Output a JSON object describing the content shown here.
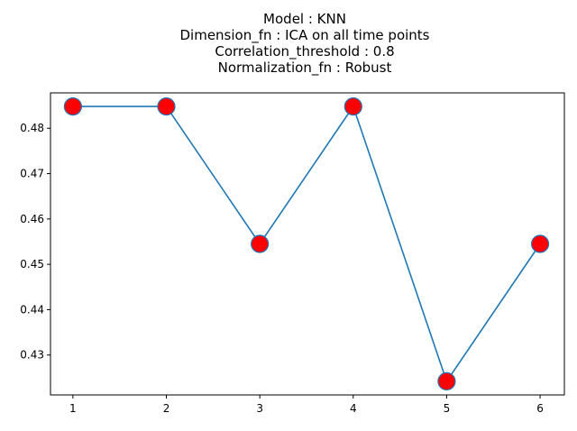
{
  "chart_data": {
    "type": "line",
    "title_lines": [
      "Model : KNN",
      "Dimension_fn : ICA on all time points",
      "Correlation_threshold : 0.8",
      "Normalization_fn : Robust"
    ],
    "xlabel": "",
    "ylabel": "",
    "x": [
      1,
      2,
      3,
      4,
      5,
      6
    ],
    "series": [
      {
        "values": [
          0.4848,
          0.4848,
          0.4545,
          0.4848,
          0.4242,
          0.4545
        ]
      }
    ],
    "xticks": [
      "1",
      "2",
      "3",
      "4",
      "5",
      "6"
    ],
    "yticks": [
      "0.43",
      "0.44",
      "0.45",
      "0.46",
      "0.47",
      "0.48"
    ],
    "xlim": [
      0.76,
      6.26
    ],
    "ylim": [
      0.4212,
      0.4878
    ],
    "grid": false,
    "line_color": "#1f77b4",
    "marker_face_color": "#ff0000",
    "marker_edge_color": "#1f77b4"
  }
}
